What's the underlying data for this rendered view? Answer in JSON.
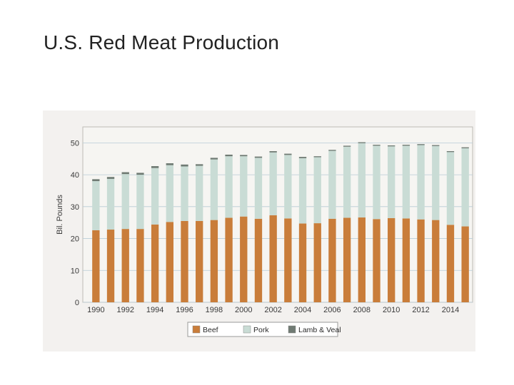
{
  "slide": {
    "title": "U.S. Red Meat Production"
  },
  "chart_data": {
    "type": "bar",
    "stacked": true,
    "title": "",
    "xlabel": "",
    "ylabel": "Bil. Pounds",
    "ylim": [
      0,
      55
    ],
    "yticks": [
      0,
      10,
      20,
      30,
      40,
      50
    ],
    "grid": true,
    "legend_position": "bottom",
    "categories": [
      "1990",
      "1991",
      "1992",
      "1993",
      "1994",
      "1995",
      "1996",
      "1997",
      "1998",
      "1999",
      "2000",
      "2001",
      "2002",
      "2003",
      "2004",
      "2005",
      "2006",
      "2007",
      "2008",
      "2009",
      "2010",
      "2011",
      "2012",
      "2013",
      "2014",
      "2015"
    ],
    "x_tick_labels": [
      "1990",
      "1992",
      "1994",
      "1996",
      "1998",
      "2000",
      "2002",
      "2004",
      "2006",
      "2008",
      "2010",
      "2012",
      "2014"
    ],
    "series": [
      {
        "name": "Beef",
        "color": "#c97d3a",
        "values": [
          22.6,
          22.8,
          23.0,
          23.0,
          24.4,
          25.2,
          25.5,
          25.5,
          25.8,
          26.5,
          26.9,
          26.2,
          27.3,
          26.3,
          24.7,
          24.8,
          26.2,
          26.5,
          26.6,
          26.1,
          26.4,
          26.3,
          26.0,
          25.8,
          24.3,
          23.8
        ]
      },
      {
        "name": "Pork",
        "color": "#c9dcd5",
        "values": [
          15.4,
          15.9,
          17.2,
          17.0,
          17.7,
          17.8,
          17.1,
          17.3,
          19.0,
          19.3,
          18.9,
          19.1,
          19.7,
          19.9,
          20.5,
          20.7,
          21.3,
          22.3,
          23.3,
          23.0,
          22.5,
          22.8,
          23.3,
          23.2,
          22.8,
          24.5
        ]
      },
      {
        "name": "Lamb & Veal",
        "color": "#6f7a73",
        "values": [
          0.6,
          0.6,
          0.6,
          0.6,
          0.6,
          0.6,
          0.6,
          0.5,
          0.5,
          0.5,
          0.4,
          0.4,
          0.4,
          0.4,
          0.4,
          0.3,
          0.3,
          0.3,
          0.3,
          0.3,
          0.3,
          0.3,
          0.3,
          0.3,
          0.3,
          0.3
        ]
      }
    ]
  }
}
